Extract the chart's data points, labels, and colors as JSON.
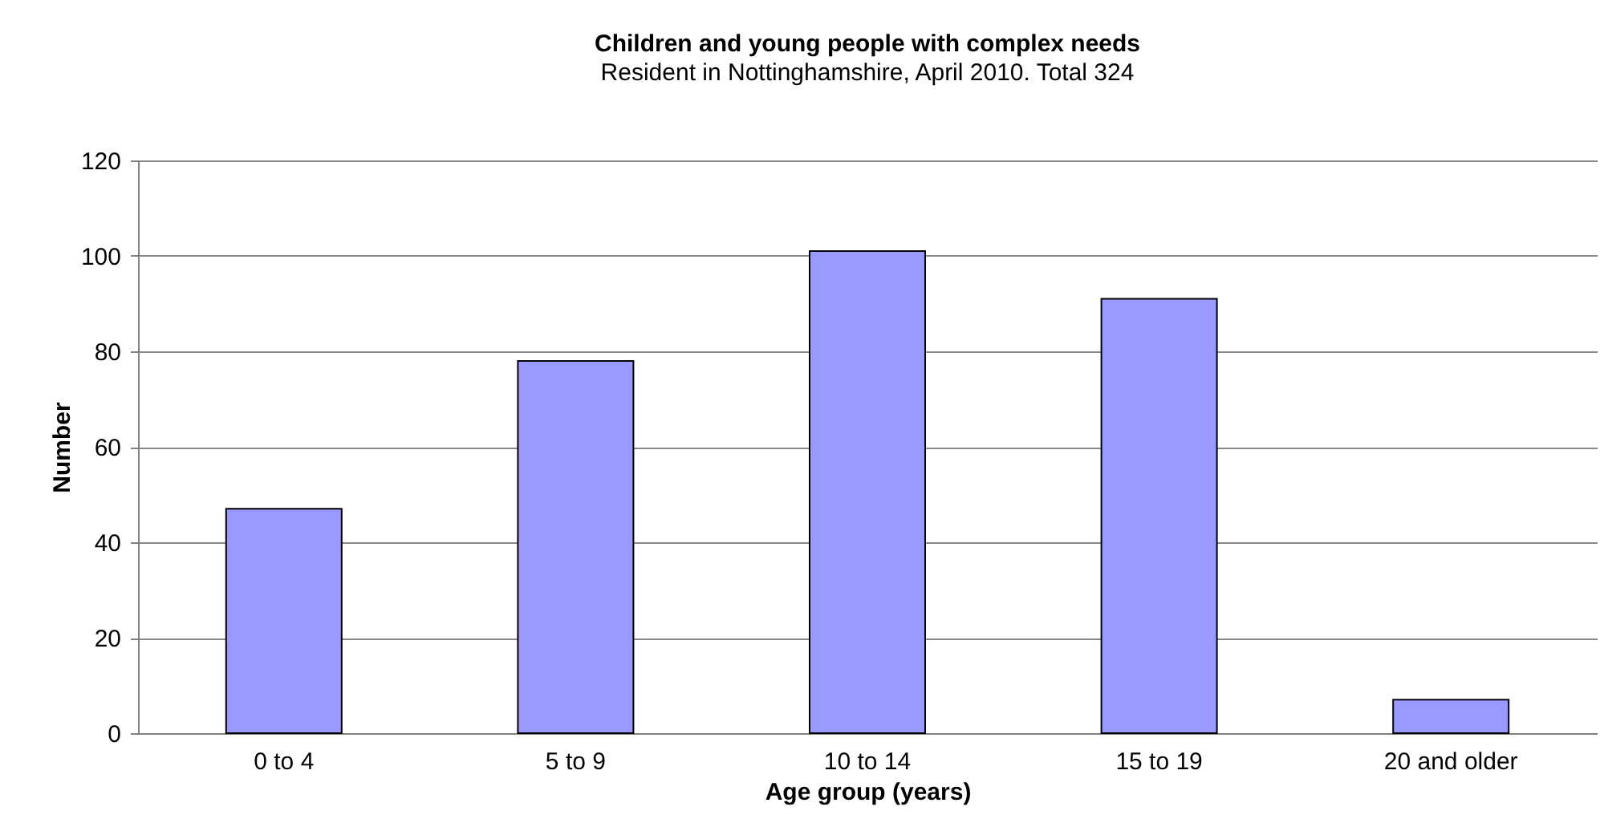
{
  "chart_data": {
    "type": "bar",
    "title": "Children and young people with complex needs",
    "subtitle": "Resident in Nottinghamshire, April 2010. Total 324",
    "xlabel": "Age group (years)",
    "ylabel": "Number",
    "categories": [
      "0 to 4",
      "5 to 9",
      "10 to 14",
      "15 to 19",
      "20 and older"
    ],
    "values": [
      47,
      78,
      101,
      91,
      7
    ],
    "color": "#9999ff",
    "ylim": [
      0,
      120
    ],
    "yticks": [
      0,
      20,
      40,
      60,
      80,
      100,
      120
    ],
    "grid": "y"
  }
}
